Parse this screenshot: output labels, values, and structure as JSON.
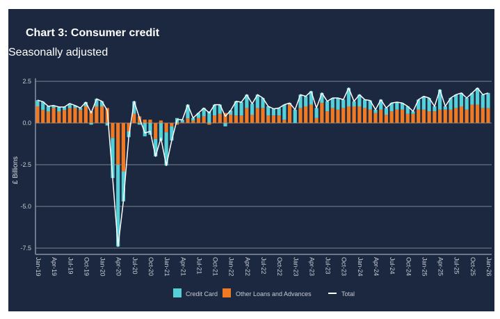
{
  "title": "Chart 3: Consumer credit",
  "subtitle": "Seasonally adjusted",
  "colors": {
    "background": "#1b2840",
    "credit_card": "#55d0d8",
    "other_loans": "#f07a24",
    "total": "#ffffff",
    "grid": "#5b6679"
  },
  "chart_data": {
    "type": "bar",
    "stacked": true,
    "title": "Chart 3: Consumer credit",
    "subtitle": "Seasonally adjusted",
    "xlabel": "",
    "ylabel": "£ Billions",
    "ylim": [
      -7.9,
      2.6
    ],
    "yticks": [
      2.5,
      0.0,
      -2.5,
      -5.0,
      -7.5
    ],
    "ytick_labels": [
      "2.5",
      "0.0",
      "-2.5",
      "-5.0",
      "-7.5"
    ],
    "grid": true,
    "legend_position": "bottom",
    "legend": [
      {
        "name": "Credit Card",
        "kind": "box"
      },
      {
        "name": "Other Loans and Advances",
        "kind": "box"
      },
      {
        "name": "Total",
        "kind": "line"
      }
    ],
    "xtick_labels": [
      "Jan-19",
      "Apr-19",
      "Jul-19",
      "Oct-19",
      "Jan-20",
      "Apr-20",
      "Jul-20",
      "Oct-20",
      "Jan-21",
      "Apr-21",
      "Jul-21",
      "Oct-21",
      "Jan-22",
      "Apr-22",
      "Jul-22",
      "Oct-22",
      "Jan-23",
      "Apr-23",
      "Jul-23",
      "Oct-23",
      "Jan-24",
      "Apr-24",
      "Jul-24",
      "Oct-24",
      "Jan-25",
      "Apr-25",
      "Jul-25",
      "Oct-25",
      "Jan-26"
    ],
    "xtick_every": 3,
    "categories": [
      "Jan-19",
      "Feb-19",
      "Mar-19",
      "Apr-19",
      "May-19",
      "Jun-19",
      "Jul-19",
      "Aug-19",
      "Sep-19",
      "Oct-19",
      "Nov-19",
      "Dec-19",
      "Jan-20",
      "Feb-20",
      "Mar-20",
      "Apr-20",
      "May-20",
      "Jun-20",
      "Jul-20",
      "Aug-20",
      "Sep-20",
      "Oct-20",
      "Nov-20",
      "Dec-20",
      "Jan-21",
      "Feb-21",
      "Mar-21",
      "Apr-21",
      "May-21",
      "Jun-21",
      "Jul-21",
      "Aug-21",
      "Sep-21",
      "Oct-21",
      "Nov-21",
      "Dec-21",
      "Jan-22",
      "Feb-22",
      "Mar-22",
      "Apr-22",
      "May-22",
      "Jun-22",
      "Jul-22",
      "Aug-22",
      "Sep-22",
      "Oct-22",
      "Nov-22",
      "Dec-22",
      "Jan-23",
      "Feb-23",
      "Mar-23",
      "Apr-23",
      "May-23",
      "Jun-23",
      "Jul-23",
      "Aug-23",
      "Sep-23",
      "Oct-23",
      "Nov-23",
      "Dec-23",
      "Jan-24",
      "Feb-24",
      "Mar-24",
      "Apr-24",
      "May-24",
      "Jun-24",
      "Jul-24",
      "Aug-24",
      "Sep-24",
      "Oct-24",
      "Nov-24",
      "Dec-24",
      "Jan-25",
      "Feb-25",
      "Mar-25",
      "Apr-25",
      "May-25",
      "Jun-25",
      "Jul-25",
      "Aug-25",
      "Sep-25",
      "Oct-25",
      "Nov-25",
      "Dec-25",
      "Jan-26"
    ],
    "series": [
      {
        "name": "Other Loans and Advances",
        "values": [
          1.0,
          0.78,
          0.68,
          0.9,
          0.68,
          0.78,
          0.9,
          0.9,
          0.78,
          1.0,
          0.7,
          1.0,
          1.0,
          0.9,
          -0.9,
          -2.5,
          -2.9,
          -0.5,
          0.55,
          0.4,
          0.2,
          0.2,
          -0.95,
          0.15,
          -0.55,
          -0.2,
          -0.1,
          0.05,
          0.28,
          0.15,
          0.3,
          0.4,
          -0.1,
          0.45,
          0.55,
          0.6,
          0.5,
          0.45,
          0.45,
          0.9,
          0.5,
          0.9,
          0.9,
          0.45,
          0.45,
          0.45,
          0.2,
          1.1,
          0.0,
          0.9,
          1.0,
          1.1,
          0.3,
          1.2,
          0.7,
          0.9,
          0.8,
          0.9,
          1.0,
          1.0,
          1.0,
          0.9,
          0.8,
          0.6,
          0.8,
          0.5,
          0.7,
          0.8,
          0.8,
          0.55,
          0.55,
          0.8,
          0.8,
          0.7,
          0.7,
          0.8,
          0.8,
          0.8,
          0.9,
          1.0,
          0.8,
          1.1,
          1.1,
          0.9,
          0.9
        ]
      },
      {
        "name": "Credit Card",
        "values": [
          0.37,
          0.5,
          0.32,
          0.15,
          0.28,
          0.18,
          0.27,
          0.15,
          0.12,
          0.25,
          -0.1,
          0.45,
          0.3,
          -0.15,
          -2.4,
          -4.9,
          -1.8,
          -0.35,
          0.75,
          -0.1,
          -0.8,
          -0.7,
          -1.05,
          -1.05,
          -2.0,
          -0.85,
          0.3,
          0.15,
          0.82,
          0.15,
          0.3,
          0.5,
          0.7,
          0.65,
          0.55,
          -0.2,
          0.25,
          0.85,
          0.8,
          0.8,
          0.65,
          0.8,
          0.6,
          0.55,
          0.4,
          0.45,
          0.9,
          0.1,
          0.8,
          0.8,
          0.6,
          0.8,
          0.6,
          0.6,
          0.6,
          0.6,
          0.7,
          0.5,
          1.1,
          0.3,
          0.7,
          0.5,
          0.55,
          0.2,
          0.6,
          0.4,
          0.5,
          0.45,
          0.4,
          0.45,
          0.15,
          0.6,
          0.8,
          0.8,
          0.3,
          1.2,
          0.2,
          0.7,
          0.8,
          0.8,
          0.7,
          0.7,
          1.0,
          0.8,
          0.9
        ]
      },
      {
        "name": "Total",
        "values": [
          1.37,
          1.28,
          1.0,
          1.05,
          0.96,
          0.96,
          1.17,
          1.05,
          0.9,
          1.25,
          0.6,
          1.45,
          1.3,
          0.75,
          -3.3,
          -7.4,
          -4.7,
          -0.85,
          1.3,
          0.3,
          -0.6,
          -0.5,
          -2.0,
          -0.9,
          -2.55,
          -1.05,
          0.2,
          0.2,
          1.1,
          0.3,
          0.6,
          0.9,
          0.6,
          1.1,
          1.1,
          0.4,
          0.75,
          1.3,
          1.25,
          1.7,
          1.15,
          1.7,
          1.5,
          1.0,
          0.85,
          0.9,
          1.1,
          1.2,
          0.8,
          1.7,
          1.6,
          1.9,
          0.9,
          1.8,
          1.3,
          1.5,
          1.5,
          1.4,
          2.1,
          1.3,
          1.7,
          1.4,
          1.35,
          0.8,
          1.4,
          0.9,
          1.2,
          1.25,
          1.2,
          1.0,
          0.7,
          1.4,
          1.6,
          1.5,
          1.0,
          2.0,
          1.0,
          1.5,
          1.7,
          1.8,
          1.5,
          1.8,
          2.1,
          1.7,
          1.8
        ]
      }
    ]
  }
}
